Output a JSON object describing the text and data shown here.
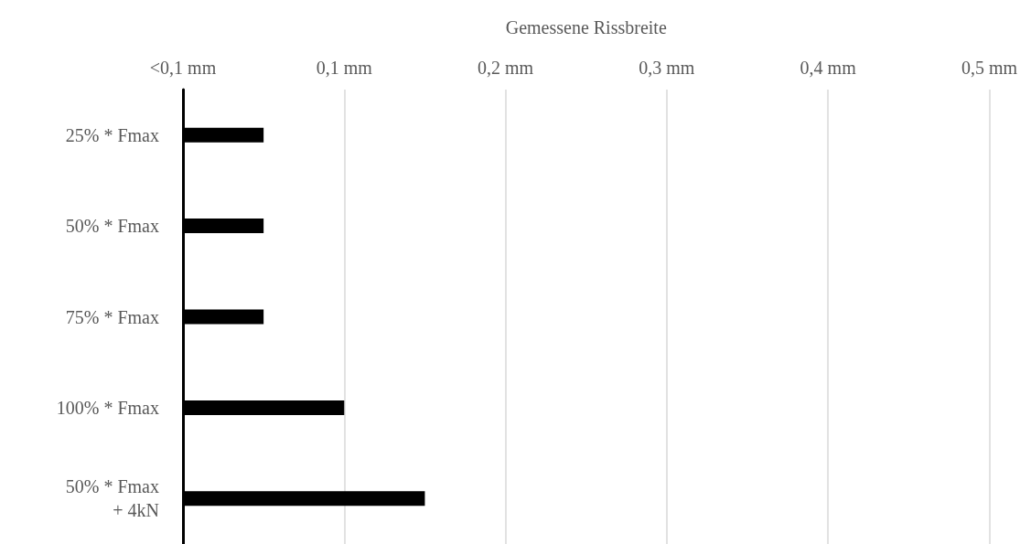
{
  "chart_data": {
    "type": "bar",
    "orientation": "horizontal",
    "xlabel": "Gemessene Rissbreite",
    "categories": [
      "25% * Fmax",
      "50% * Fmax",
      "75% * Fmax",
      "100% * Fmax",
      "50% * Fmax\n+ 4kN"
    ],
    "values": [
      0.05,
      0.05,
      0.05,
      0.1,
      0.15
    ],
    "color": "#000000",
    "xlim": [
      0,
      0.5
    ],
    "xticks": [
      {
        "value": 0,
        "label": "<0,1 mm"
      },
      {
        "value": 0.1,
        "label": "0,1 mm"
      },
      {
        "value": 0.2,
        "label": "0,2 mm"
      },
      {
        "value": 0.3,
        "label": "0,3 mm"
      },
      {
        "value": 0.4,
        "label": "0,4 mm"
      },
      {
        "value": 0.5,
        "label": "0,5 mm"
      }
    ],
    "grid": "x"
  }
}
